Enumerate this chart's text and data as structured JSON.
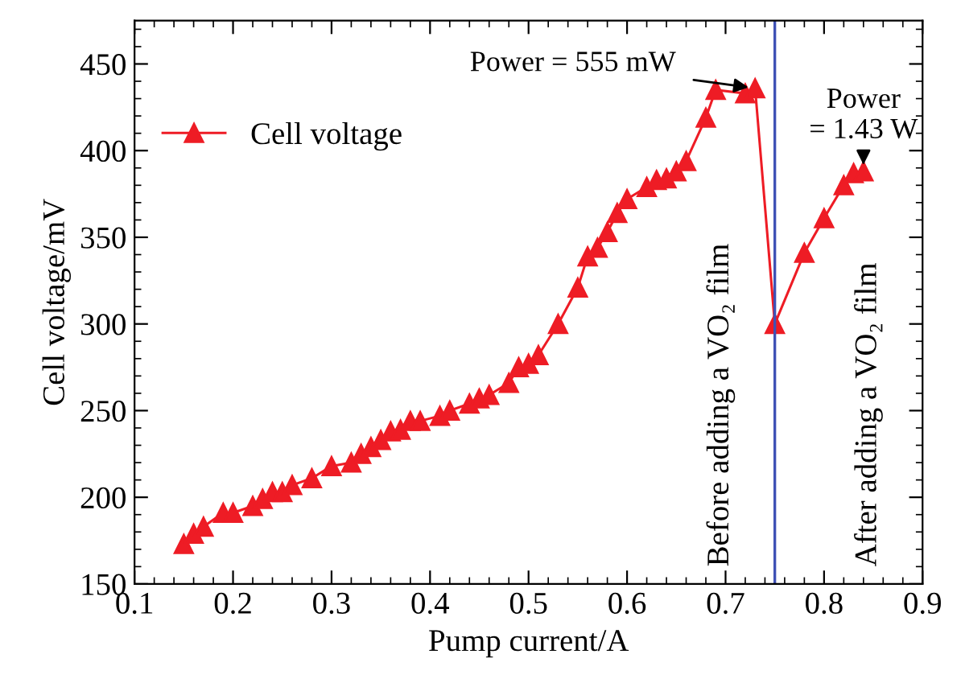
{
  "chart_data": {
    "type": "line",
    "xlabel": "Pump current/A",
    "ylabel": "Cell voltage/mV",
    "x": [
      0.15,
      0.16,
      0.17,
      0.19,
      0.2,
      0.22,
      0.23,
      0.24,
      0.25,
      0.26,
      0.28,
      0.3,
      0.32,
      0.33,
      0.34,
      0.35,
      0.36,
      0.37,
      0.38,
      0.39,
      0.41,
      0.42,
      0.44,
      0.45,
      0.46,
      0.48,
      0.49,
      0.5,
      0.51,
      0.53,
      0.55,
      0.56,
      0.57,
      0.58,
      0.59,
      0.6,
      0.62,
      0.63,
      0.64,
      0.65,
      0.66,
      0.68,
      0.69,
      0.72,
      0.73,
      0.75,
      0.78,
      0.8,
      0.82,
      0.83,
      0.84
    ],
    "series": [
      {
        "name": "Cell voltage",
        "color": "#ee1c25",
        "values": [
          173,
          179,
          183,
          191,
          191,
          195,
          199,
          203,
          203,
          207,
          211,
          218,
          220,
          225,
          229,
          233,
          238,
          239,
          244,
          244,
          247,
          250,
          254,
          257,
          259,
          266,
          275,
          277,
          282,
          300,
          321,
          339,
          344,
          353,
          364,
          372,
          379,
          383,
          384,
          388,
          394,
          419,
          435,
          433,
          436,
          300,
          341,
          361,
          380,
          387,
          388
        ]
      }
    ],
    "marker": "triangle",
    "line_style": "solid",
    "legend": "top left",
    "grid": false,
    "xlim": [
      0.1,
      0.9
    ],
    "xticks": [
      0.1,
      0.2,
      0.3,
      0.4,
      0.5,
      0.6,
      0.7,
      0.8,
      0.9
    ],
    "ylim": [
      150,
      475
    ],
    "yticks": [
      150,
      200,
      250,
      300,
      350,
      400,
      450
    ],
    "ref_lines": [
      {
        "axis": "x",
        "value": 0.75,
        "color": "#3f51b5"
      }
    ],
    "annotations": [
      {
        "text": "Power = 555 mW",
        "x": 0.73,
        "y": 436
      },
      {
        "text": "Power\n= 1.43 W",
        "x": 0.84,
        "y": 388
      },
      "Before adding a VO₂ film",
      "After adding a VO₂ film"
    ]
  }
}
